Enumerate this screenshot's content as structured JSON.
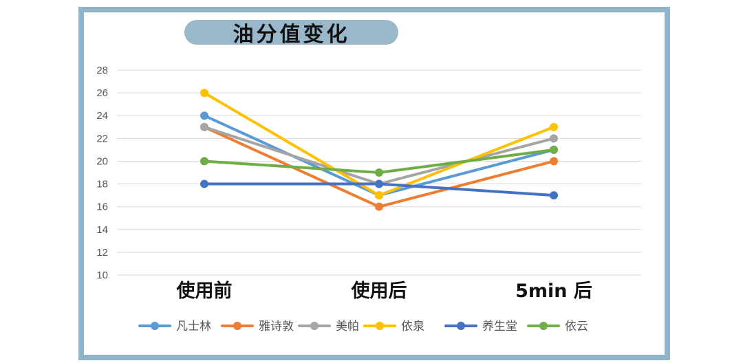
{
  "chart_data": {
    "type": "line",
    "title": "油分值变化",
    "categories": [
      "使用前",
      "使用后",
      "5min 后"
    ],
    "ylim": [
      10,
      28
    ],
    "yticks": [
      10,
      12,
      14,
      16,
      18,
      20,
      22,
      24,
      26,
      28
    ],
    "grid": true,
    "legend_position": "bottom",
    "series": [
      {
        "name": "凡士林",
        "color": "#5b9bd5",
        "values": [
          24,
          17,
          21
        ]
      },
      {
        "name": "雅诗敦",
        "color": "#ed7d31",
        "values": [
          23,
          16,
          20
        ]
      },
      {
        "name": "美帕",
        "color": "#a5a5a5",
        "values": [
          23,
          18,
          22
        ]
      },
      {
        "name": "依泉",
        "color": "#ffc000",
        "values": [
          26,
          17,
          23
        ]
      },
      {
        "name": "养生堂",
        "color": "#4472c4",
        "values": [
          18,
          18,
          17
        ]
      },
      {
        "name": "依云",
        "color": "#70ad47",
        "values": [
          20,
          19,
          21
        ]
      }
    ]
  }
}
